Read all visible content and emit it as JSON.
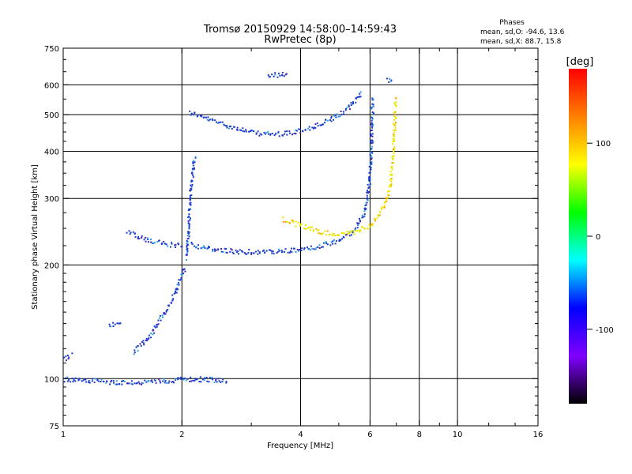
{
  "chart_data": {
    "type": "scatter",
    "title": "Tromsø 20150929 14:58:00–14:59:43",
    "subtitle": "RwPretec (8p)",
    "xlabel": "Frequency [MHz]",
    "ylabel": "Stationary phase Virtual Height [km]",
    "xscale": "log",
    "yscale": "log",
    "xlim": [
      1,
      16
    ],
    "ylim": [
      75,
      750
    ],
    "x_ticks": [
      1,
      2,
      4,
      6,
      8,
      10,
      16
    ],
    "y_ticks": [
      75,
      100,
      200,
      300,
      400,
      500,
      600,
      750
    ],
    "x_grid": [
      2,
      4,
      6,
      8,
      10
    ],
    "y_grid": [
      100,
      200,
      300,
      400,
      500,
      600
    ],
    "grid": true,
    "phase_header": "Phases",
    "phase_stats": [
      {
        "label": "mean, sd,O:",
        "mean": -94.6,
        "sd": 13.6
      },
      {
        "label": "mean, sd,X:",
        "mean": 88.7,
        "sd": 15.8
      }
    ],
    "colorbar": {
      "label": "[deg]",
      "range": [
        -180,
        180
      ],
      "ticks": [
        100,
        0,
        -100
      ],
      "colors": [
        "#ff0000",
        "#ff8000",
        "#ffff00",
        "#00ff00",
        "#00ffff",
        "#0000ff",
        "#8000ff",
        "#000000"
      ]
    },
    "traces": [
      {
        "phase": -100,
        "color": "#1a3ccc",
        "points": [
          [
            2.08,
            510
          ],
          [
            2.3,
            490
          ],
          [
            2.6,
            470
          ],
          [
            3.0,
            450
          ],
          [
            3.4,
            445
          ],
          [
            3.8,
            450
          ],
          [
            4.3,
            465
          ],
          [
            4.8,
            490
          ],
          [
            5.2,
            515
          ],
          [
            5.5,
            550
          ],
          [
            5.7,
            580
          ]
        ]
      },
      {
        "phase": -100,
        "color": "#1a3ccc",
        "points": [
          [
            2.05,
            230
          ],
          [
            2.3,
            222
          ],
          [
            2.7,
            218
          ],
          [
            3.2,
            217
          ],
          [
            3.8,
            219
          ],
          [
            4.4,
            224
          ],
          [
            5.0,
            233
          ],
          [
            5.5,
            250
          ],
          [
            5.8,
            280
          ],
          [
            5.95,
            330
          ],
          [
            6.02,
            400
          ],
          [
            6.05,
            480
          ],
          [
            6.08,
            560
          ]
        ]
      },
      {
        "phase": -100,
        "color": "#1a3ccc",
        "points": [
          [
            1.45,
            245
          ],
          [
            1.6,
            235
          ],
          [
            1.8,
            228
          ],
          [
            2.0,
            226
          ]
        ]
      },
      {
        "phase": -100,
        "color": "#1a3ccc",
        "points": [
          [
            2.05,
            210
          ],
          [
            2.07,
            250
          ],
          [
            2.09,
            300
          ],
          [
            2.12,
            350
          ],
          [
            2.15,
            390
          ]
        ]
      },
      {
        "phase": -100,
        "color": "#1a3ccc",
        "points": [
          [
            1.5,
            118
          ],
          [
            1.65,
            130
          ],
          [
            1.8,
            150
          ],
          [
            1.92,
            170
          ],
          [
            2.0,
            190
          ],
          [
            2.03,
            200
          ]
        ]
      },
      {
        "phase": -100,
        "color": "#1a3ccc",
        "points": [
          [
            1.0,
            100
          ],
          [
            1.2,
            99
          ],
          [
            1.4,
            98
          ],
          [
            1.6,
            98
          ],
          [
            1.8,
            99
          ],
          [
            2.0,
            100
          ],
          [
            2.3,
            100
          ],
          [
            2.6,
            99
          ]
        ]
      },
      {
        "phase": -100,
        "color": "#1a3ccc",
        "points": [
          [
            1.0,
            113
          ],
          [
            1.05,
            116
          ]
        ]
      },
      {
        "phase": -100,
        "color": "#1a3ccc",
        "points": [
          [
            1.3,
            140
          ],
          [
            1.4,
            140
          ]
        ]
      },
      {
        "phase": 100,
        "color": "#e8e800",
        "points": [
          [
            3.6,
            265
          ],
          [
            4.0,
            255
          ],
          [
            4.5,
            246
          ],
          [
            5.0,
            242
          ],
          [
            5.5,
            246
          ],
          [
            6.0,
            257
          ],
          [
            6.4,
            280
          ],
          [
            6.7,
            320
          ],
          [
            6.85,
            400
          ],
          [
            6.9,
            480
          ],
          [
            6.92,
            560
          ]
        ]
      },
      {
        "phase": -100,
        "color": "#1a3ccc",
        "points": [
          [
            3.3,
            640
          ],
          [
            3.5,
            640
          ],
          [
            3.7,
            645
          ]
        ]
      },
      {
        "phase": -100,
        "color": "#1a3ccc",
        "points": [
          [
            6.6,
            620
          ],
          [
            6.8,
            610
          ]
        ]
      }
    ]
  }
}
